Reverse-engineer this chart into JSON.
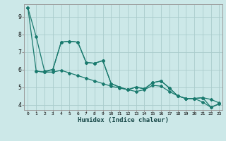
{
  "xlabel": "Humidex (Indice chaleur)",
  "background_color": "#cce8e8",
  "grid_color": "#aacccc",
  "line_color": "#1a7a6e",
  "xlim": [
    -0.5,
    23.4
  ],
  "ylim": [
    3.7,
    9.7
  ],
  "x_ticks": [
    0,
    1,
    2,
    3,
    4,
    5,
    6,
    7,
    8,
    9,
    10,
    11,
    12,
    13,
    14,
    15,
    16,
    17,
    18,
    19,
    20,
    21,
    22,
    23
  ],
  "y_ticks": [
    4,
    5,
    6,
    7,
    8,
    9
  ],
  "line1_x": [
    0,
    1,
    2,
    3,
    4,
    5,
    6,
    7,
    8,
    9,
    10,
    11,
    12,
    13,
    14,
    15,
    16,
    17,
    18,
    19,
    20,
    21,
    22,
    23
  ],
  "line1_y": [
    9.5,
    7.85,
    5.9,
    6.0,
    7.55,
    7.6,
    7.55,
    6.4,
    6.35,
    6.5,
    5.2,
    5.0,
    4.85,
    5.0,
    4.9,
    5.25,
    5.35,
    4.95,
    4.5,
    4.35,
    4.35,
    4.15,
    3.85,
    4.05
  ],
  "line2_x": [
    0,
    1,
    2,
    3,
    4,
    5,
    6,
    7,
    8,
    9,
    10,
    11,
    12,
    13,
    14,
    15,
    16,
    17,
    18,
    19,
    20,
    21,
    22,
    23
  ],
  "line2_y": [
    9.5,
    5.9,
    5.85,
    5.85,
    5.95,
    5.8,
    5.65,
    5.5,
    5.35,
    5.2,
    5.05,
    4.95,
    4.85,
    4.75,
    4.85,
    5.1,
    5.05,
    4.75,
    4.5,
    4.35,
    4.35,
    4.4,
    4.3,
    4.1
  ],
  "line3_x": [
    1,
    2,
    3,
    4,
    5,
    6,
    7,
    8,
    9,
    10,
    11,
    12,
    13,
    14,
    15,
    16,
    17,
    18,
    19,
    20,
    21,
    22,
    23
  ],
  "line3_y": [
    5.9,
    5.85,
    6.0,
    7.55,
    7.6,
    7.55,
    6.4,
    6.35,
    6.5,
    5.2,
    5.0,
    4.85,
    5.0,
    4.9,
    5.25,
    5.35,
    4.95,
    4.5,
    4.35,
    4.35,
    4.4,
    3.85,
    4.05
  ],
  "marker": "D",
  "marker_size": 2.0,
  "line_width": 0.9
}
